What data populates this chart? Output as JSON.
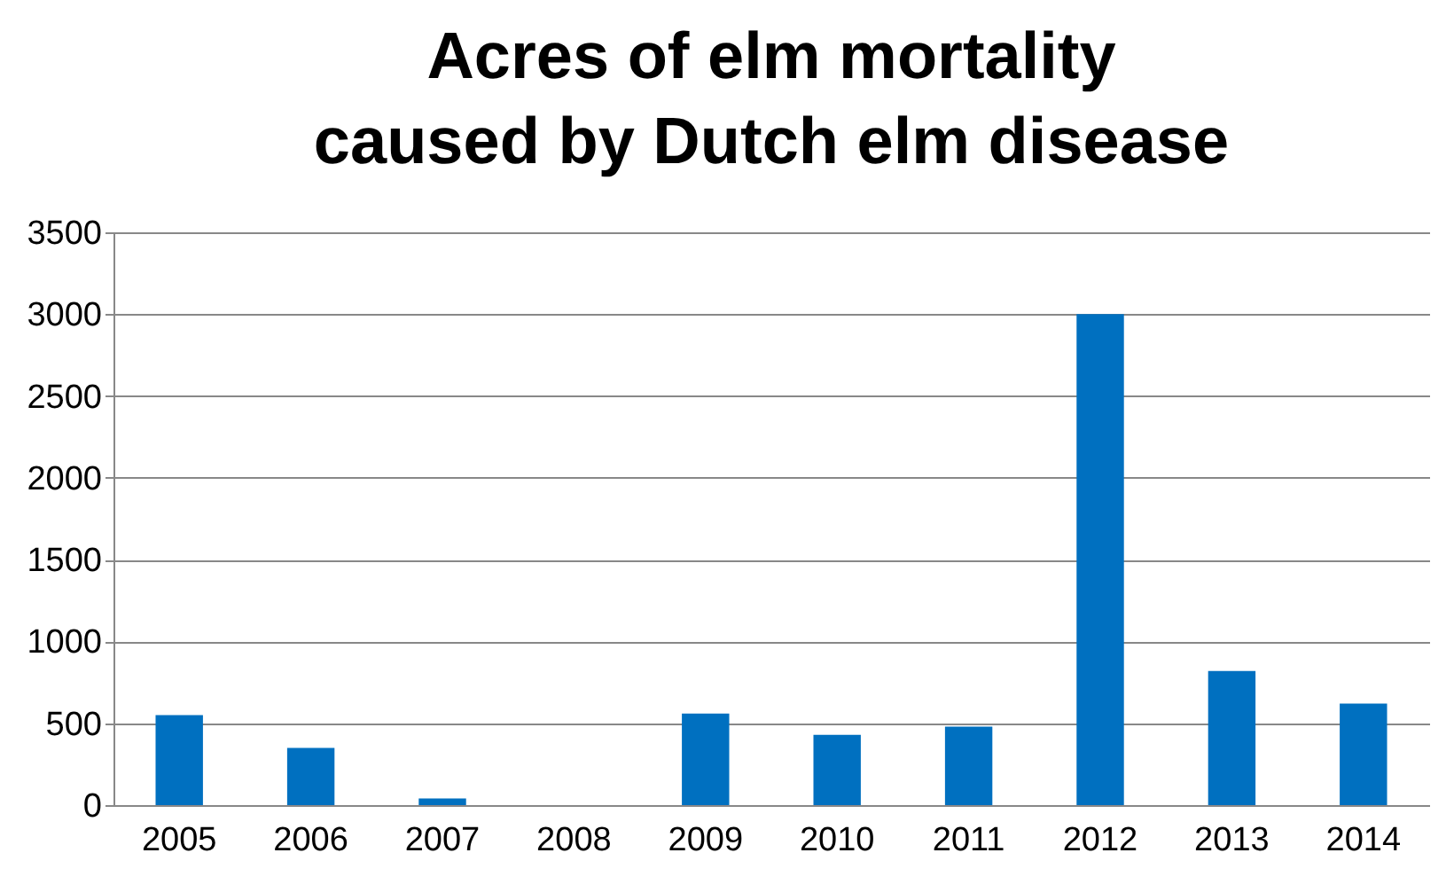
{
  "chart_data": {
    "type": "bar",
    "title": "Acres of elm mortality caused by Dutch elm disease",
    "categories": [
      "2005",
      "2006",
      "2007",
      "2008",
      "2009",
      "2010",
      "2011",
      "2012",
      "2013",
      "2014"
    ],
    "values": [
      550,
      350,
      40,
      0,
      560,
      430,
      480,
      3000,
      820,
      620
    ],
    "color": "#0070c0",
    "ylim": [
      0,
      3500
    ],
    "yticks": [
      0,
      500,
      1000,
      1500,
      2000,
      2500,
      3000,
      3500
    ],
    "grid": "y",
    "legend": false
  }
}
